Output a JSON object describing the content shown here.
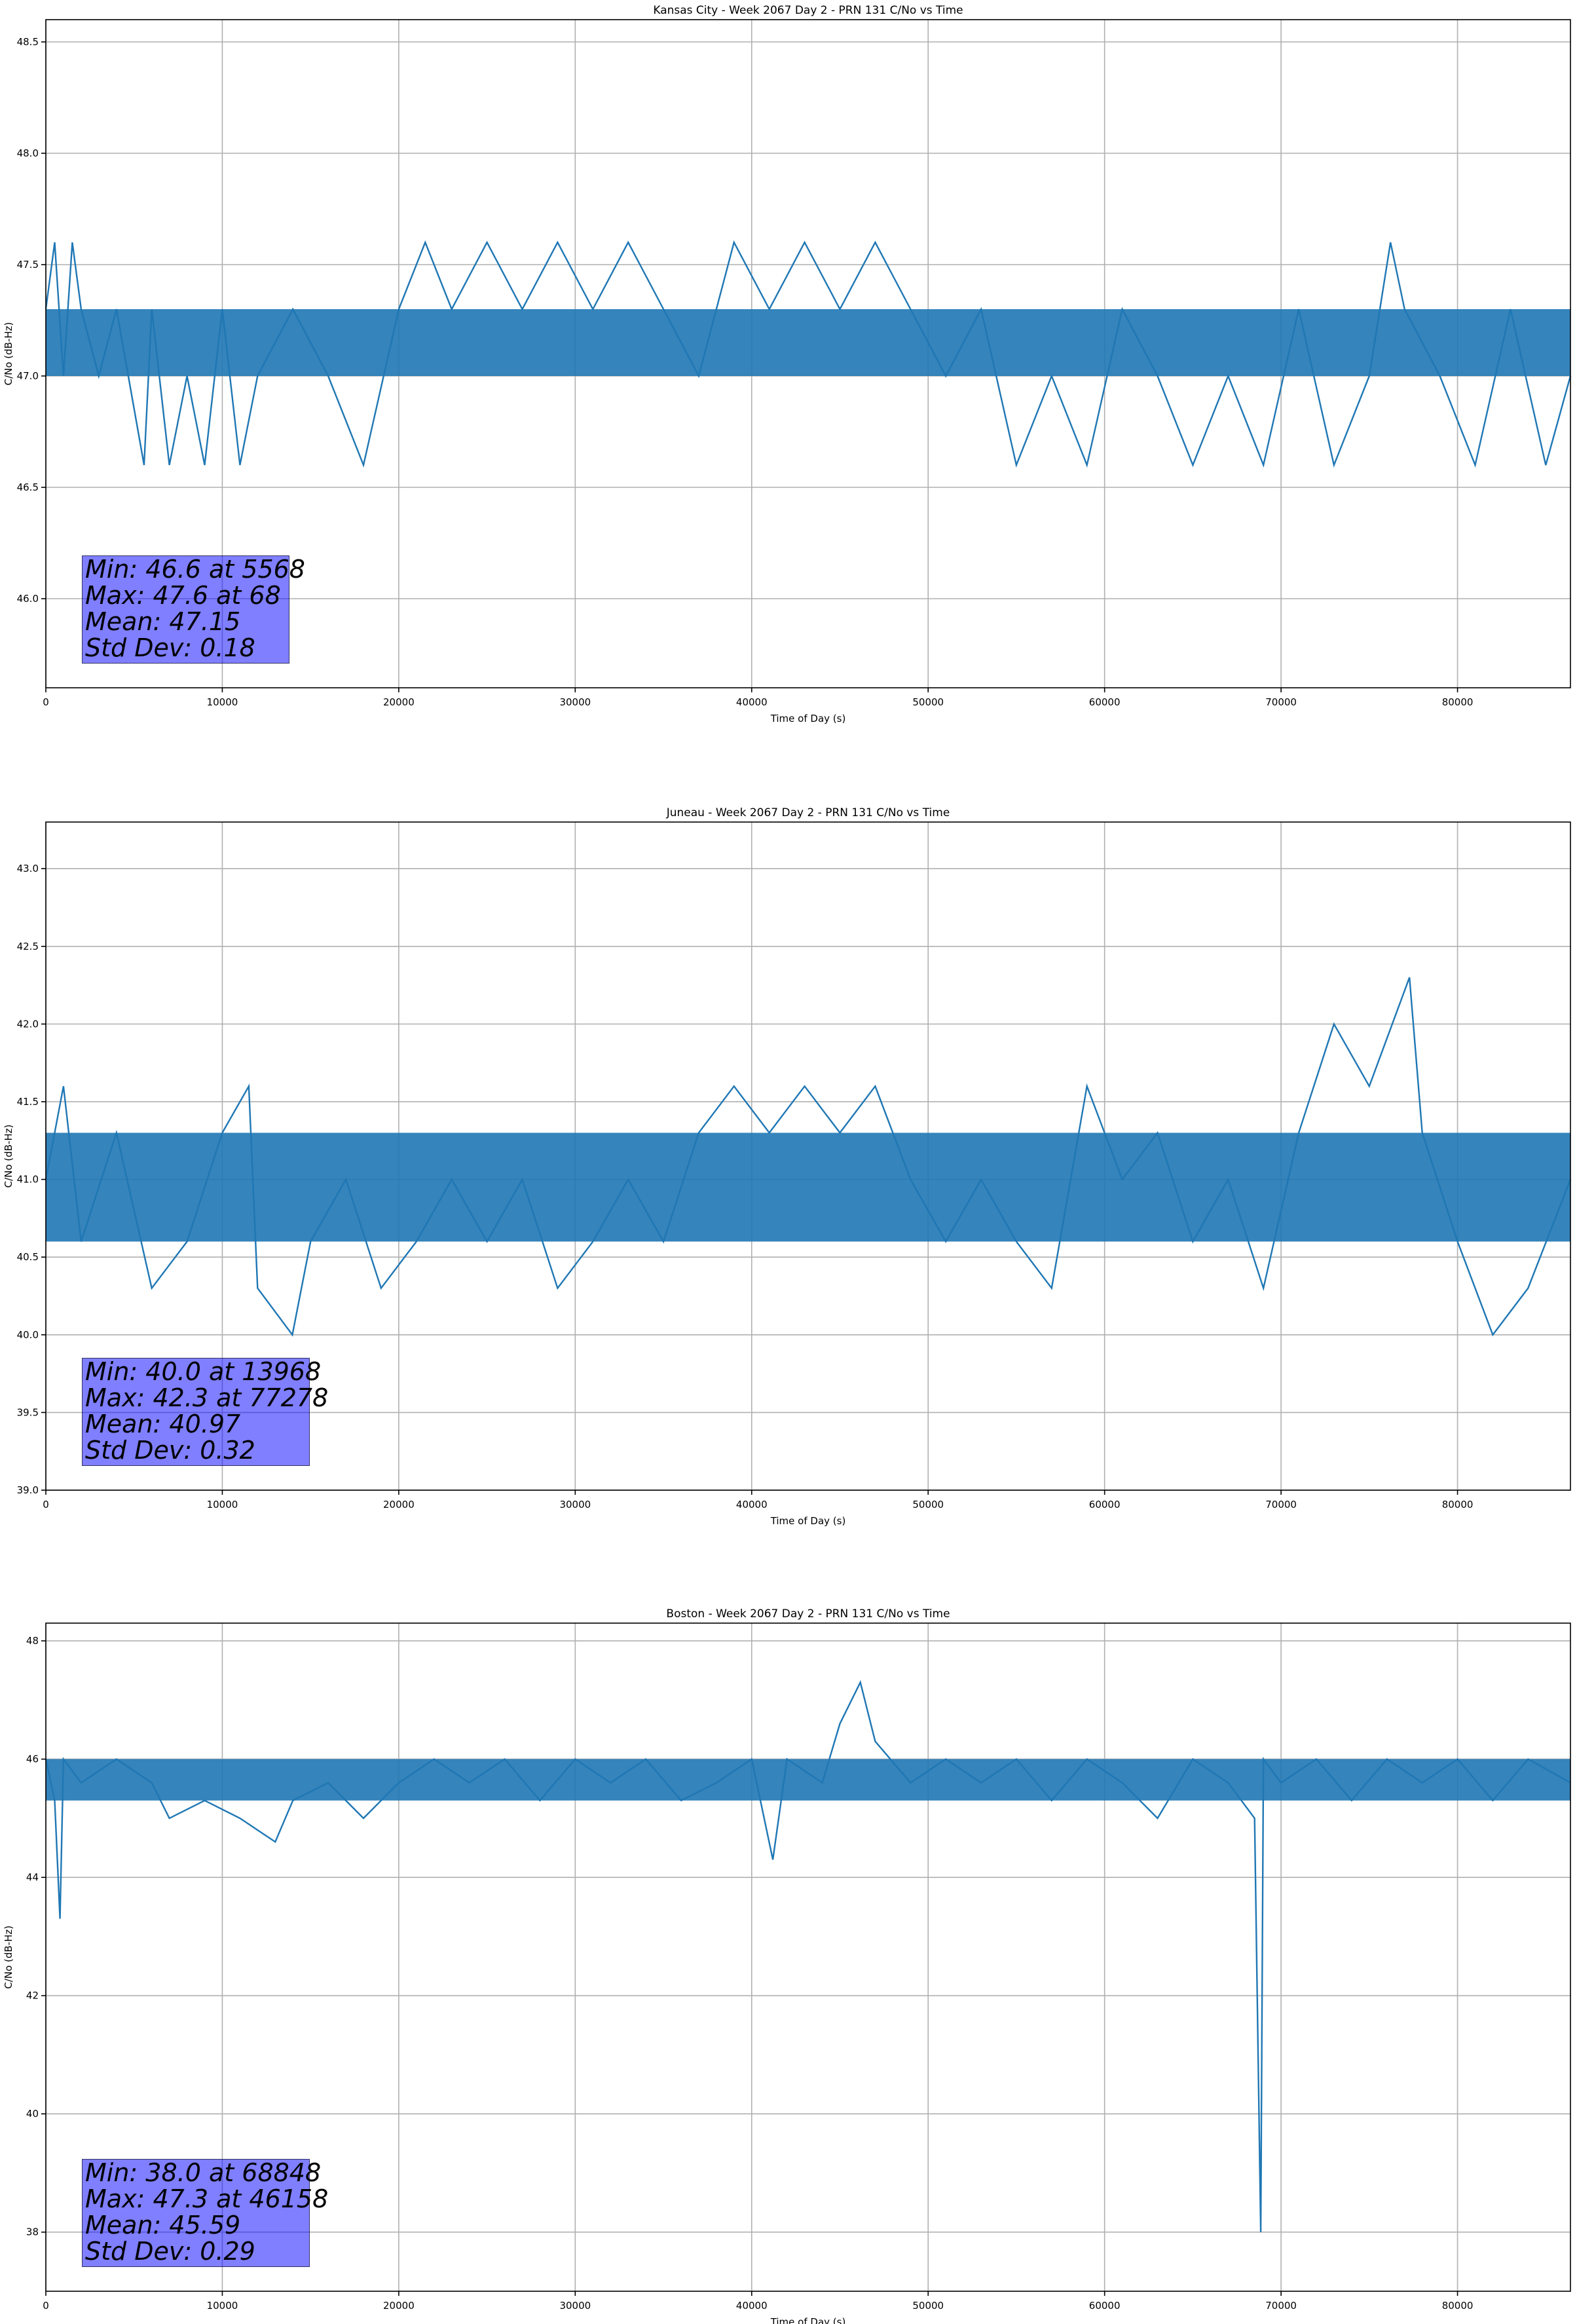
{
  "chart_data": [
    {
      "type": "line",
      "title": "Kansas City - Week 2067 Day 2 - PRN 131 C/No vs Time",
      "xlabel": "Time of Day (s)",
      "ylabel": "C/No (dB-Hz)",
      "xlim": [
        0,
        86400
      ],
      "ylim": [
        45.6,
        48.6
      ],
      "xticks": [
        0,
        10000,
        20000,
        30000,
        40000,
        50000,
        60000,
        70000,
        80000
      ],
      "yticks": [
        46.0,
        46.5,
        47.0,
        47.5,
        48.0,
        48.5
      ],
      "ytick_labels": [
        "46.0",
        "46.5",
        "47.0",
        "47.5",
        "48.0",
        "48.5"
      ],
      "grid": true,
      "color": "#1f77b4",
      "series": [
        {
          "x": [
            0,
            500,
            1000,
            1500,
            2000,
            3000,
            4000,
            5568,
            6000,
            7000,
            8000,
            9000,
            10000,
            11000,
            12000,
            14000,
            16000,
            18000,
            20000,
            21500,
            23000,
            25000,
            27000,
            29000,
            31000,
            33000,
            35000,
            37000,
            39000,
            41000,
            43000,
            45000,
            47000,
            49000,
            51000,
            53000,
            55000,
            57000,
            59000,
            61000,
            63000,
            65000,
            67000,
            69000,
            71000,
            73000,
            75000,
            76200,
            77000,
            79000,
            81000,
            83000,
            85000,
            86400
          ],
          "values": [
            47.3,
            47.6,
            47.0,
            47.6,
            47.3,
            47.0,
            47.3,
            46.6,
            47.3,
            46.6,
            47.0,
            46.6,
            47.3,
            46.6,
            47.0,
            47.3,
            47.0,
            46.6,
            47.3,
            47.6,
            47.3,
            47.6,
            47.3,
            47.6,
            47.3,
            47.6,
            47.3,
            47.0,
            47.6,
            47.3,
            47.6,
            47.3,
            47.6,
            47.3,
            47.0,
            47.3,
            46.6,
            47.0,
            46.6,
            47.3,
            47.0,
            46.6,
            47.0,
            46.6,
            47.3,
            46.6,
            47.0,
            47.6,
            47.3,
            47.0,
            46.6,
            47.3,
            46.6,
            47.0
          ]
        }
      ],
      "band": {
        "x": [
          0,
          86400
        ],
        "low": 47.0,
        "high": 47.3
      },
      "stats": [
        "Min: 46.6 at 5568",
        "Max: 47.6 at 68",
        "Mean: 47.15",
        "Std Dev: 0.18"
      ]
    },
    {
      "type": "line",
      "title": "Juneau - Week 2067 Day 2 - PRN 131 C/No vs Time",
      "xlabel": "Time of Day (s)",
      "ylabel": "C/No (dB-Hz)",
      "xlim": [
        0,
        86400
      ],
      "ylim": [
        39.0,
        43.3
      ],
      "xticks": [
        0,
        10000,
        20000,
        30000,
        40000,
        50000,
        60000,
        70000,
        80000
      ],
      "yticks": [
        39.0,
        39.5,
        40.0,
        40.5,
        41.0,
        41.5,
        42.0,
        42.5,
        43.0
      ],
      "ytick_labels": [
        "39.0",
        "39.5",
        "40.0",
        "40.5",
        "41.0",
        "41.5",
        "42.0",
        "42.5",
        "43.0"
      ],
      "grid": true,
      "color": "#1f77b4",
      "series": [
        {
          "x": [
            0,
            1000,
            2000,
            4000,
            6000,
            8000,
            10000,
            11500,
            12000,
            13968,
            15000,
            17000,
            19000,
            21000,
            23000,
            25000,
            27000,
            29000,
            31000,
            33000,
            35000,
            37000,
            39000,
            41000,
            43000,
            45000,
            47000,
            49000,
            51000,
            53000,
            55000,
            57000,
            59000,
            61000,
            63000,
            65000,
            67000,
            69000,
            71000,
            73000,
            75000,
            77278,
            78000,
            80000,
            82000,
            84000,
            86400
          ],
          "values": [
            41.0,
            41.6,
            40.6,
            41.3,
            40.3,
            40.6,
            41.3,
            41.6,
            40.3,
            40.0,
            40.6,
            41.0,
            40.3,
            40.6,
            41.0,
            40.6,
            41.0,
            40.3,
            40.6,
            41.0,
            40.6,
            41.3,
            41.6,
            41.3,
            41.6,
            41.3,
            41.6,
            41.0,
            40.6,
            41.0,
            40.6,
            40.3,
            41.6,
            41.0,
            41.3,
            40.6,
            41.0,
            40.3,
            41.3,
            42.0,
            41.6,
            42.3,
            41.3,
            40.6,
            40.0,
            40.3,
            41.0
          ]
        }
      ],
      "band": {
        "x": [
          0,
          86400
        ],
        "low": 40.6,
        "high": 41.3
      },
      "stats": [
        "Min: 40.0 at 13968",
        "Max: 42.3 at 77278",
        "Mean: 40.97",
        "Std Dev: 0.32"
      ]
    },
    {
      "type": "line",
      "title": "Boston - Week 2067 Day 2 - PRN 131 C/No vs Time",
      "xlabel": "Time of Day (s)",
      "ylabel": "C/No (dB-Hz)",
      "xlim": [
        0,
        86400
      ],
      "ylim": [
        37.0,
        48.3
      ],
      "xticks": [
        0,
        10000,
        20000,
        30000,
        40000,
        50000,
        60000,
        70000,
        80000
      ],
      "yticks": [
        38,
        40,
        42,
        44,
        46,
        48
      ],
      "ytick_labels": [
        "38",
        "40",
        "42",
        "44",
        "46",
        "48"
      ],
      "grid": true,
      "color": "#1f77b4",
      "series": [
        {
          "x": [
            0,
            500,
            800,
            1000,
            2000,
            4000,
            6000,
            7000,
            9000,
            11000,
            13000,
            14000,
            16000,
            18000,
            20000,
            22000,
            24000,
            26000,
            28000,
            30000,
            32000,
            34000,
            36000,
            38000,
            40000,
            41200,
            42000,
            44000,
            45000,
            46158,
            47000,
            49000,
            51000,
            53000,
            55000,
            57000,
            59000,
            61000,
            63000,
            65000,
            67000,
            68500,
            68848,
            69000,
            70000,
            72000,
            74000,
            76000,
            78000,
            80000,
            82000,
            84000,
            86400
          ],
          "values": [
            46.0,
            45.3,
            43.3,
            46.0,
            45.6,
            46.0,
            45.6,
            45.0,
            45.3,
            45.0,
            44.6,
            45.3,
            45.6,
            45.0,
            45.6,
            46.0,
            45.6,
            46.0,
            45.3,
            46.0,
            45.6,
            46.0,
            45.3,
            45.6,
            46.0,
            44.3,
            46.0,
            45.6,
            46.6,
            47.3,
            46.3,
            45.6,
            46.0,
            45.6,
            46.0,
            45.3,
            46.0,
            45.6,
            45.0,
            46.0,
            45.6,
            45.0,
            38.0,
            46.0,
            45.6,
            46.0,
            45.3,
            46.0,
            45.6,
            46.0,
            45.3,
            46.0,
            45.6
          ]
        }
      ],
      "band": {
        "x": [
          0,
          86400
        ],
        "low": 45.3,
        "high": 46.0
      },
      "stats": [
        "Min: 38.0 at 68848",
        "Max: 47.3 at 46158",
        "Mean: 45.59",
        "Std Dev: 0.29"
      ]
    }
  ]
}
